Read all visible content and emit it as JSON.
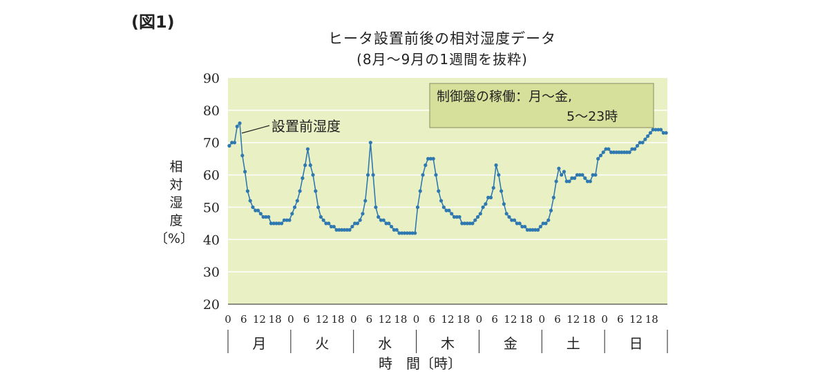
{
  "figure_label": "(図1)",
  "chart_data": {
    "type": "line",
    "title": "ヒータ設置前後の相対湿度データ",
    "subtitle": "(8月～9月の1週間を抜粋)",
    "ylabel": "相対湿度〔%〕",
    "xlabel": "時　間〔時〕",
    "ylim": [
      20,
      90
    ],
    "yticks": [
      20,
      30,
      40,
      50,
      60,
      70,
      80,
      90
    ],
    "hour_ticks": [
      "0",
      "6",
      "12",
      "18"
    ],
    "days": [
      "月",
      "火",
      "水",
      "木",
      "金",
      "土",
      "日"
    ],
    "annotation": "設置前湿度",
    "note": [
      "制御盤の稼働：月～金,",
      "5～23時"
    ],
    "colors": {
      "plot_bg": "#e8f0c4",
      "line": "#2f78b0",
      "note_bg": "#d6e09a",
      "grid": "#ffffff"
    },
    "series": [
      {
        "hours": [
          0,
          1,
          2,
          3,
          4,
          5,
          6,
          7,
          8,
          9,
          10,
          11,
          12,
          13,
          14,
          15,
          16,
          17,
          18,
          19,
          20,
          21,
          22,
          23,
          24,
          25,
          26,
          27,
          28,
          29,
          30,
          31,
          32,
          33,
          34,
          35,
          36,
          37,
          38,
          39,
          40,
          41,
          42,
          43,
          44,
          45,
          46,
          47,
          48,
          49,
          50,
          51,
          52,
          53,
          54,
          55,
          56,
          57,
          58,
          59,
          60,
          61,
          62,
          63,
          64,
          65,
          66,
          67,
          68,
          69,
          70,
          71,
          72,
          73,
          74,
          75,
          76,
          77,
          78,
          79,
          80,
          81,
          82,
          83,
          84,
          85,
          86,
          87,
          88,
          89,
          90,
          91,
          92,
          93,
          94,
          95,
          96,
          97,
          98,
          99,
          100,
          101,
          102,
          103,
          104,
          105,
          106,
          107,
          108,
          109,
          110,
          111,
          112,
          113,
          114,
          115,
          116,
          117,
          118,
          119,
          120,
          121,
          122,
          123,
          124,
          125,
          126,
          127,
          128,
          129,
          130,
          131,
          132,
          133,
          134,
          135,
          136,
          137,
          138,
          139,
          140,
          141,
          142,
          143,
          144,
          145,
          146,
          147,
          148,
          149,
          150,
          151,
          152,
          153,
          154,
          155,
          156,
          157,
          158,
          159,
          160,
          161,
          162,
          163,
          164,
          165,
          166,
          167
        ],
        "values": [
          69,
          70,
          70,
          75,
          76,
          66,
          61,
          55,
          52,
          50,
          49,
          49,
          48,
          47,
          47,
          47,
          45,
          45,
          45,
          45,
          45,
          46,
          46,
          46,
          48,
          50,
          52,
          55,
          59,
          63,
          68,
          63,
          60,
          55,
          50,
          47,
          46,
          45,
          45,
          44,
          44,
          43,
          43,
          43,
          43,
          43,
          43,
          44,
          45,
          45,
          46,
          48,
          52,
          60,
          70,
          60,
          50,
          47,
          46,
          46,
          45,
          45,
          44,
          43,
          43,
          42,
          42,
          42,
          42,
          42,
          42,
          42,
          50,
          55,
          60,
          63,
          65,
          65,
          65,
          60,
          55,
          52,
          50,
          49,
          49,
          48,
          47,
          47,
          47,
          45,
          45,
          45,
          45,
          45,
          46,
          47,
          48,
          50,
          51,
          53,
          53,
          56,
          63,
          60,
          55,
          51,
          48,
          47,
          46,
          46,
          45,
          45,
          44,
          44,
          43,
          43,
          43,
          43,
          43,
          44,
          45,
          45,
          46,
          49,
          53,
          58,
          62,
          60,
          61,
          58,
          58,
          59,
          59,
          60,
          60,
          60,
          59,
          58,
          58,
          60,
          60,
          65,
          66,
          67,
          68,
          68,
          67,
          67,
          67,
          67,
          67,
          67,
          67,
          67,
          68,
          68,
          69,
          70,
          70,
          71,
          72,
          73,
          74,
          74,
          74,
          74,
          73,
          73
        ]
      }
    ]
  }
}
